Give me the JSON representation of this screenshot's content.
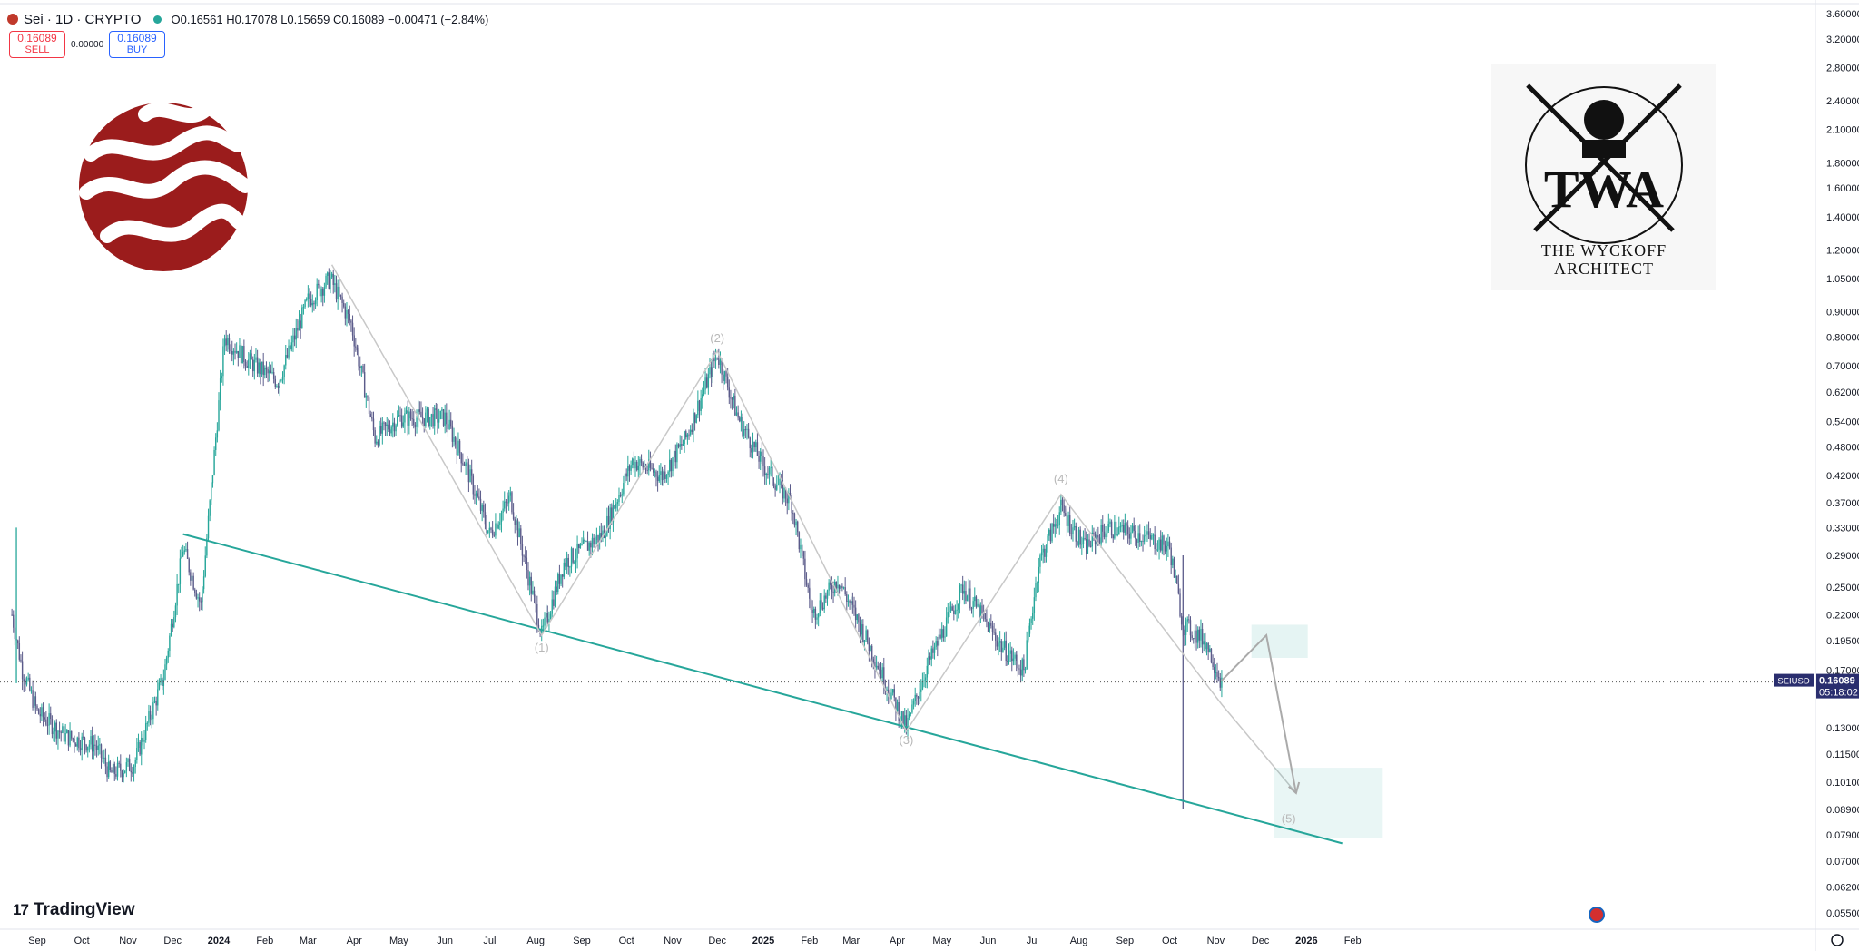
{
  "header": {
    "symbol": "Sei · 1D · CRYPTO",
    "ohlc": "O0.16561 H0.17078 L0.15659 C0.16089 −0.00471 (−2.84%)"
  },
  "trade": {
    "sell_price": "0.16089",
    "sell_label": "SELL",
    "buy_price": "0.16089",
    "buy_label": "BUY",
    "spread": "0.00000"
  },
  "watermark": {
    "line1": "THE WYCKOFF",
    "line2": "ARCHITECT",
    "monogram": "TWA"
  },
  "brand": "TradingView",
  "last_price": {
    "symbol": "SEIUSD",
    "price": "0.16089",
    "countdown": "05:18:02"
  },
  "colors": {
    "up": "#26a69a",
    "down": "#5b5b8a",
    "trendline": "#26a69a",
    "wave": "#c8c8c8",
    "sei_red": "#9b1c1c"
  },
  "chart_data": {
    "type": "candlestick",
    "y_scale": "log",
    "y_ticks": [
      "3.60000",
      "3.20000",
      "2.80000",
      "2.40000",
      "2.10000",
      "1.80000",
      "1.60000",
      "1.40000",
      "1.20000",
      "1.05000",
      "0.90000",
      "0.80000",
      "0.70000",
      "0.62000",
      "0.54000",
      "0.48000",
      "0.42000",
      "0.37000",
      "0.33000",
      "0.29000",
      "0.25000",
      "0.22000",
      "0.19500",
      "0.17000",
      "0.13000",
      "0.11500",
      "0.10100",
      "0.08900",
      "0.07900",
      "0.07000",
      "0.06200",
      "0.05500"
    ],
    "x_ticks": [
      "Sep",
      "Oct",
      "Nov",
      "Dec",
      "2024",
      "Feb",
      "Mar",
      "Apr",
      "May",
      "Jun",
      "Jul",
      "Aug",
      "Sep",
      "Oct",
      "Nov",
      "Dec",
      "2025",
      "Feb",
      "Mar",
      "Apr",
      "May",
      "Jun",
      "Jul",
      "Aug",
      "Sep",
      "Oct",
      "Nov",
      "Dec",
      "2026",
      "Feb"
    ],
    "price_path": [
      {
        "date": "2023-08-15",
        "close": 0.22
      },
      {
        "date": "2023-08-22",
        "close": 0.17
      },
      {
        "date": "2023-09-01",
        "close": 0.14
      },
      {
        "date": "2023-09-20",
        "close": 0.125
      },
      {
        "date": "2023-10-10",
        "close": 0.12
      },
      {
        "date": "2023-10-20",
        "close": 0.105
      },
      {
        "date": "2023-11-05",
        "close": 0.11
      },
      {
        "date": "2023-11-25",
        "close": 0.165
      },
      {
        "date": "2023-12-08",
        "close": 0.3
      },
      {
        "date": "2023-12-20",
        "close": 0.23
      },
      {
        "date": "2024-01-05",
        "close": 0.8
      },
      {
        "date": "2024-01-20",
        "close": 0.72
      },
      {
        "date": "2024-02-10",
        "close": 0.65
      },
      {
        "date": "2024-03-01",
        "close": 0.95
      },
      {
        "date": "2024-03-16",
        "close": 1.05
      },
      {
        "date": "2024-03-30",
        "close": 0.85
      },
      {
        "date": "2024-04-15",
        "close": 0.5
      },
      {
        "date": "2024-05-01",
        "close": 0.55
      },
      {
        "date": "2024-06-01",
        "close": 0.55
      },
      {
        "date": "2024-06-15",
        "close": 0.44
      },
      {
        "date": "2024-07-01",
        "close": 0.32
      },
      {
        "date": "2024-07-15",
        "close": 0.38
      },
      {
        "date": "2024-08-05",
        "close": 0.2
      },
      {
        "date": "2024-08-20",
        "close": 0.28
      },
      {
        "date": "2024-09-15",
        "close": 0.32
      },
      {
        "date": "2024-10-05",
        "close": 0.45
      },
      {
        "date": "2024-10-25",
        "close": 0.42
      },
      {
        "date": "2024-11-10",
        "close": 0.5
      },
      {
        "date": "2024-12-01",
        "close": 0.74
      },
      {
        "date": "2024-12-15",
        "close": 0.55
      },
      {
        "date": "2025-01-01",
        "close": 0.44
      },
      {
        "date": "2025-01-20",
        "close": 0.37
      },
      {
        "date": "2025-02-03",
        "close": 0.22
      },
      {
        "date": "2025-02-20",
        "close": 0.26
      },
      {
        "date": "2025-03-10",
        "close": 0.2
      },
      {
        "date": "2025-04-07",
        "close": 0.13
      },
      {
        "date": "2025-04-20",
        "close": 0.17
      },
      {
        "date": "2025-05-15",
        "close": 0.25
      },
      {
        "date": "2025-06-10",
        "close": 0.19
      },
      {
        "date": "2025-06-25",
        "close": 0.17
      },
      {
        "date": "2025-07-05",
        "close": 0.28
      },
      {
        "date": "2025-07-20",
        "close": 0.36
      },
      {
        "date": "2025-08-05",
        "close": 0.3
      },
      {
        "date": "2025-08-20",
        "close": 0.33
      },
      {
        "date": "2025-09-10",
        "close": 0.32
      },
      {
        "date": "2025-10-01",
        "close": 0.3
      },
      {
        "date": "2025-10-10",
        "close": 0.21
      },
      {
        "date": "2025-10-25",
        "close": 0.195
      },
      {
        "date": "2025-11-05",
        "close": 0.16089
      }
    ],
    "trendline": [
      {
        "date": "2023-12-08",
        "price": 0.32
      },
      {
        "date": "2026-01-25",
        "price": 0.076
      }
    ],
    "wave_labels": [
      {
        "label": "(1)",
        "date": "2024-08-05",
        "price": 0.2
      },
      {
        "label": "(2)",
        "date": "2024-12-01",
        "price": 0.75
      },
      {
        "label": "(3)",
        "date": "2025-04-07",
        "price": 0.13
      },
      {
        "label": "(4)",
        "date": "2025-07-20",
        "price": 0.39
      },
      {
        "label": "(5)",
        "date": "2025-12-20",
        "price": 0.088
      }
    ]
  }
}
